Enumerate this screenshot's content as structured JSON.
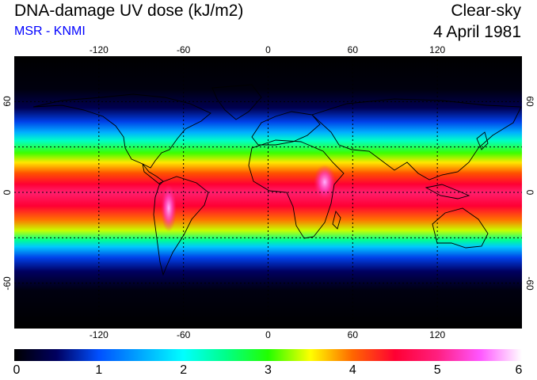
{
  "header": {
    "title": "DNA-damage UV dose (kJ/m2)",
    "subtitle": "MSR - KNMI",
    "mode": "Clear-sky",
    "date": "4 April 1981"
  },
  "colors": {
    "subtitle": "#0000ff",
    "background": "#000000",
    "coast": "#000000",
    "grid": "#000000"
  },
  "map": {
    "projection": "equirectangular",
    "lon_range": [
      -180,
      180
    ],
    "lat_range": [
      -90,
      90
    ],
    "x_ticks": [
      "-120",
      "-60",
      "0",
      "60",
      "120"
    ],
    "x_tick_values": [
      -120,
      -60,
      0,
      60,
      120
    ],
    "y_ticks": [
      "60",
      "0",
      "-60"
    ],
    "y_tick_values": [
      60,
      0,
      -60
    ],
    "gridlines": "dashed"
  },
  "colorbar": {
    "labels": [
      "0",
      "1",
      "2",
      "3",
      "4",
      "5",
      "6"
    ],
    "min": 0,
    "max": 6,
    "stops": [
      [
        0,
        "#000000"
      ],
      [
        0.5,
        "#000060"
      ],
      [
        1,
        "#0050ff"
      ],
      [
        1.5,
        "#00a8ff"
      ],
      [
        2,
        "#00ffff"
      ],
      [
        2.5,
        "#00ff88"
      ],
      [
        3,
        "#22ff00"
      ],
      [
        3.5,
        "#ffff00"
      ],
      [
        4,
        "#ff6600"
      ],
      [
        4.5,
        "#ff0033"
      ],
      [
        5,
        "#ff1f7f"
      ],
      [
        5.5,
        "#ff55ff"
      ],
      [
        6,
        "#ffffff"
      ]
    ]
  }
}
